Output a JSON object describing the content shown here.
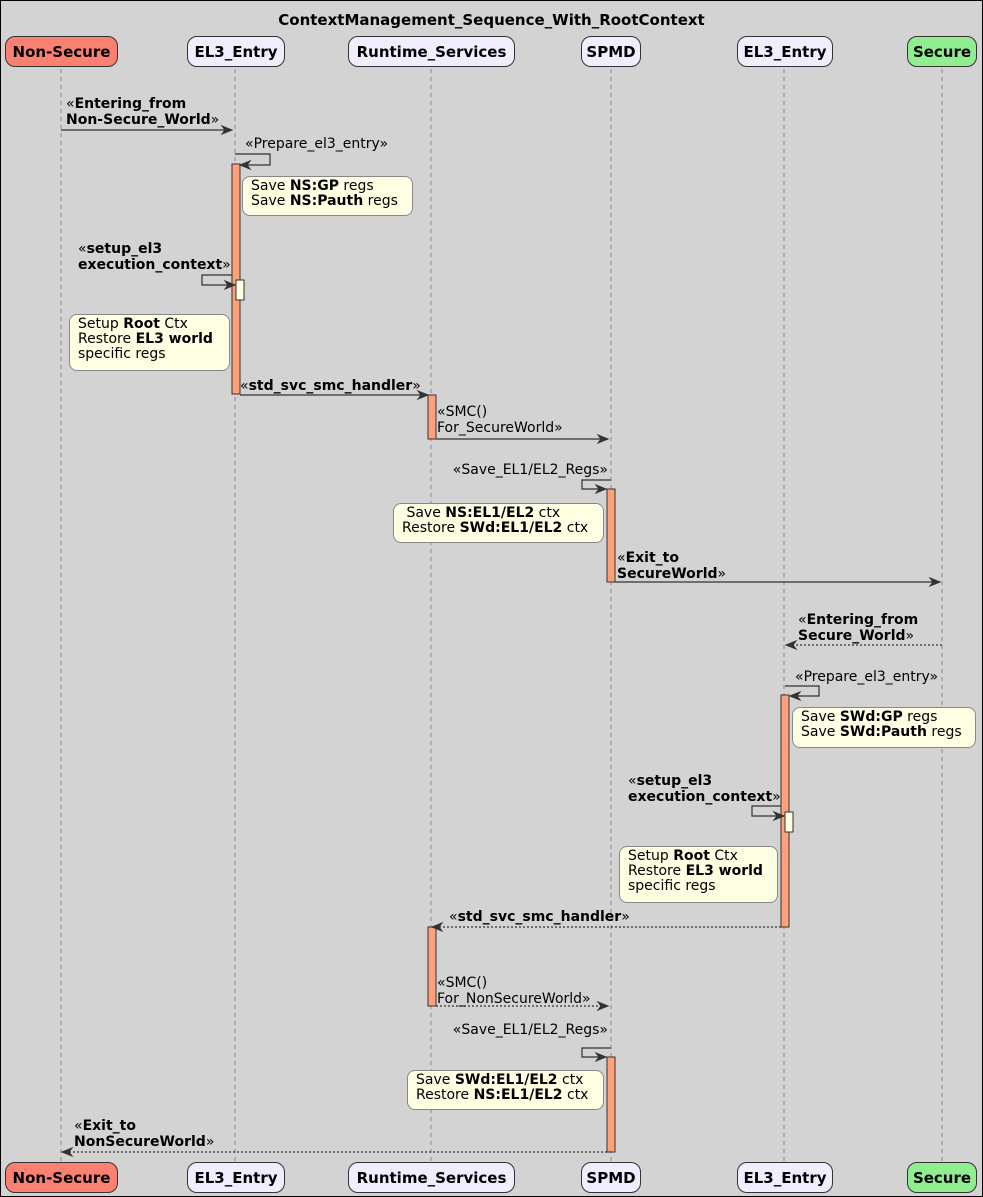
{
  "title": "ContextManagement_Sequence_With_RootContext",
  "participants": [
    {
      "name": "Non-Secure",
      "color": "#fa8072"
    },
    {
      "name": "EL3_Entry",
      "color": "#eeeeff"
    },
    {
      "name": "Runtime_Services",
      "color": "#eeeeff"
    },
    {
      "name": "SPMD",
      "color": "#eeeeff"
    },
    {
      "name": "EL3_Entry",
      "color": "#eeeeff"
    },
    {
      "name": "Secure",
      "color": "#90ee90"
    }
  ],
  "colors": {
    "activation": "#ffa07a",
    "nested_activation": "#fefee2",
    "note": "#fefee2",
    "background": "#d3d3d3"
  },
  "messages": [
    {
      "from": "Non-Secure",
      "to": "EL3_Entry",
      "style": "solid",
      "lines": [
        [
          {
            "text": "«"
          },
          {
            "text": "Entering_from",
            "bold": true
          }
        ],
        [
          {
            "text": "Non-Secure_World",
            "bold": true
          },
          {
            "text": "»"
          }
        ]
      ]
    },
    {
      "from": "EL3_Entry",
      "to": "EL3_Entry",
      "style": "solid",
      "lines": [
        [
          {
            "text": "«Prepare_el3_entry»"
          }
        ]
      ]
    },
    {
      "from": "EL3_Entry",
      "to": "EL3_Entry",
      "style": "solid",
      "lines": [
        [
          {
            "text": "«"
          },
          {
            "text": "setup_el3",
            "bold": true
          }
        ],
        [
          {
            "text": "execution_context",
            "bold": true
          },
          {
            "text": "»"
          }
        ]
      ]
    },
    {
      "from": "EL3_Entry",
      "to": "Runtime_Services",
      "style": "solid",
      "lines": [
        [
          {
            "text": "«"
          },
          {
            "text": "std_svc_smc_handler",
            "bold": true
          },
          {
            "text": "»"
          }
        ]
      ]
    },
    {
      "from": "Runtime_Services",
      "to": "SPMD",
      "style": "solid",
      "lines": [
        [
          {
            "text": "«SMC()"
          }
        ],
        [
          {
            "text": "For_SecureWorld»"
          }
        ]
      ]
    },
    {
      "from": "SPMD",
      "to": "SPMD",
      "style": "solid",
      "lines": [
        [
          {
            "text": "«Save_EL1/EL2_Regs»"
          }
        ]
      ]
    },
    {
      "from": "SPMD",
      "to": "Secure",
      "style": "solid",
      "lines": [
        [
          {
            "text": "«"
          },
          {
            "text": "Exit_to",
            "bold": true
          }
        ],
        [
          {
            "text": "SecureWorld",
            "bold": true
          },
          {
            "text": "»"
          }
        ]
      ]
    },
    {
      "from": "Secure",
      "to": "EL3_Entry",
      "style": "dashed",
      "lines": [
        [
          {
            "text": "«"
          },
          {
            "text": "Entering_from",
            "bold": true
          }
        ],
        [
          {
            "text": "Secure_World",
            "bold": true
          },
          {
            "text": "»"
          }
        ]
      ]
    },
    {
      "from": "EL3_Entry",
      "to": "EL3_Entry",
      "style": "solid",
      "lines": [
        [
          {
            "text": "«Prepare_el3_entry»"
          }
        ]
      ]
    },
    {
      "from": "EL3_Entry",
      "to": "EL3_Entry",
      "style": "solid",
      "lines": [
        [
          {
            "text": "«"
          },
          {
            "text": "setup_el3",
            "bold": true
          }
        ],
        [
          {
            "text": "execution_context",
            "bold": true
          },
          {
            "text": "»"
          }
        ]
      ]
    },
    {
      "from": "EL3_Entry",
      "to": "Runtime_Services",
      "style": "dashed",
      "lines": [
        [
          {
            "text": "«"
          },
          {
            "text": "std_svc_smc_handler",
            "bold": true
          },
          {
            "text": "»"
          }
        ]
      ]
    },
    {
      "from": "Runtime_Services",
      "to": "SPMD",
      "style": "dashed",
      "lines": [
        [
          {
            "text": "«SMC()"
          }
        ],
        [
          {
            "text": "For_NonSecureWorld»"
          }
        ]
      ]
    },
    {
      "from": "SPMD",
      "to": "SPMD",
      "style": "solid",
      "lines": [
        [
          {
            "text": "«Save_EL1/EL2_Regs»"
          }
        ]
      ]
    },
    {
      "from": "SPMD",
      "to": "Non-Secure",
      "style": "dashed",
      "lines": [
        [
          {
            "text": "«"
          },
          {
            "text": "Exit_to",
            "bold": true
          }
        ],
        [
          {
            "text": "NonSecureWorld",
            "bold": true
          },
          {
            "text": "»"
          }
        ]
      ]
    }
  ],
  "notes": [
    {
      "lines": [
        [
          {
            "text": "Save "
          },
          {
            "text": "NS:GP",
            "bold": true
          },
          {
            "text": " regs"
          }
        ],
        [
          {
            "text": "Save "
          },
          {
            "text": "NS:Pauth",
            "bold": true
          },
          {
            "text": " regs"
          }
        ]
      ]
    },
    {
      "lines": [
        [
          {
            "text": "Setup "
          },
          {
            "text": "Root",
            "bold": true
          },
          {
            "text": " Ctx"
          }
        ],
        [
          {
            "text": "Restore "
          },
          {
            "text": "EL3 world",
            "bold": true
          }
        ],
        [
          {
            "text": "specific regs"
          }
        ]
      ]
    },
    {
      "lines": [
        [
          {
            "text": " Save "
          },
          {
            "text": "NS:EL1/EL2",
            "bold": true
          },
          {
            "text": " ctx"
          }
        ],
        [
          {
            "text": "Restore "
          },
          {
            "text": "SWd:EL1/EL2",
            "bold": true
          },
          {
            "text": " ctx"
          }
        ]
      ]
    },
    {
      "lines": [
        [
          {
            "text": "Save "
          },
          {
            "text": "SWd:GP",
            "bold": true
          },
          {
            "text": " regs"
          }
        ],
        [
          {
            "text": "Save "
          },
          {
            "text": "SWd:Pauth",
            "bold": true
          },
          {
            "text": " regs"
          }
        ]
      ]
    },
    {
      "lines": [
        [
          {
            "text": "Setup "
          },
          {
            "text": "Root",
            "bold": true
          },
          {
            "text": " Ctx"
          }
        ],
        [
          {
            "text": "Restore "
          },
          {
            "text": "EL3 world",
            "bold": true
          }
        ],
        [
          {
            "text": "specific regs"
          }
        ]
      ]
    },
    {
      "lines": [
        [
          {
            "text": "Save "
          },
          {
            "text": "SWd:EL1/EL2",
            "bold": true
          },
          {
            "text": " ctx"
          }
        ],
        [
          {
            "text": "Restore "
          },
          {
            "text": "NS:EL1/EL2",
            "bold": true
          },
          {
            "text": " ctx"
          }
        ]
      ]
    }
  ]
}
